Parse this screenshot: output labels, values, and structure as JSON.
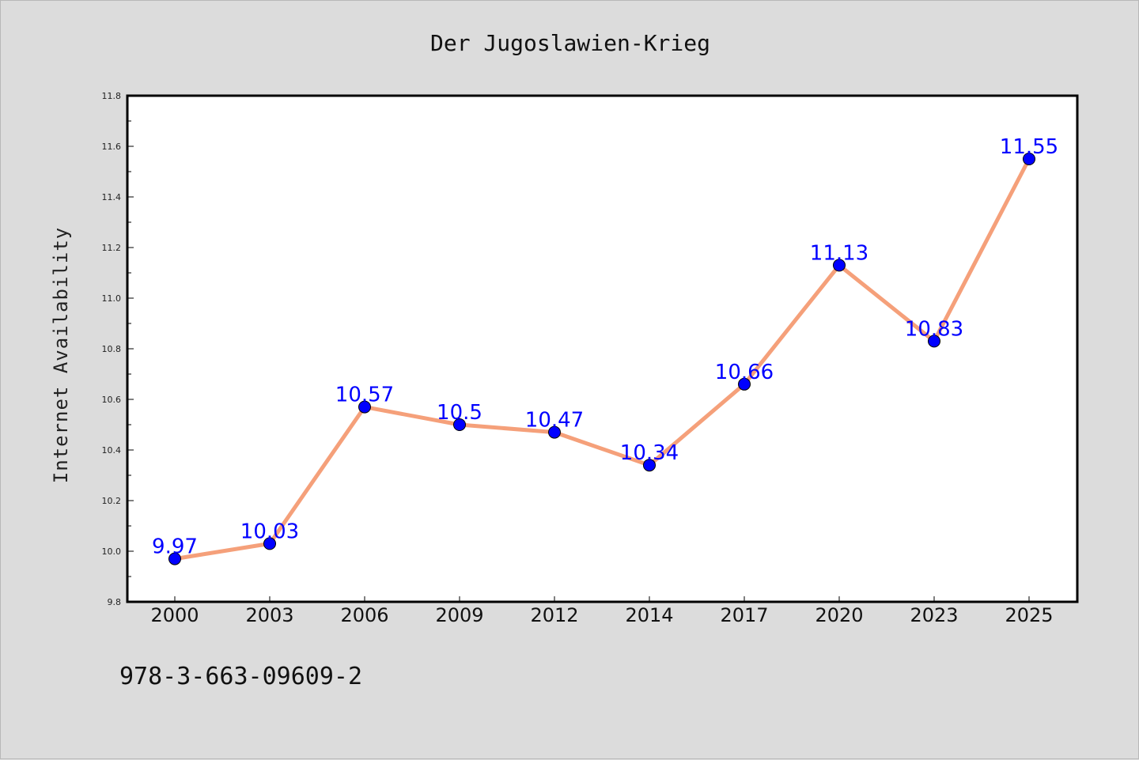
{
  "chart_data": {
    "type": "line",
    "title": "Der Jugoslawien-Krieg",
    "xlabel": "",
    "ylabel": "Internet Availability",
    "categories": [
      "2000",
      "2003",
      "2006",
      "2009",
      "2012",
      "2014",
      "2017",
      "2020",
      "2023",
      "2025"
    ],
    "series": [
      {
        "values": [
          9.97,
          10.03,
          10.57,
          10.5,
          10.47,
          10.34,
          10.66,
          11.13,
          10.83,
          11.55
        ],
        "line_color": "#f5a07a",
        "marker_color": "#0000ff"
      }
    ],
    "data_labels": [
      "9.97",
      "10.03",
      "10.57",
      "10.5",
      "10.47",
      "10.34",
      "10.66",
      "11.13",
      "10.83",
      "11.55"
    ],
    "ylim": [
      9.8,
      11.8
    ],
    "yticks": [
      "9.8",
      "10.0",
      "10.2",
      "10.4",
      "10.6",
      "10.8",
      "11.0",
      "11.2",
      "11.4",
      "11.6",
      "11.8"
    ],
    "grid": false,
    "legend": "none",
    "label_color": "#0000ff",
    "background_color": "#dcdcdc",
    "plot_background": "#ffffff"
  },
  "footer_text": "978-3-663-09609-2"
}
